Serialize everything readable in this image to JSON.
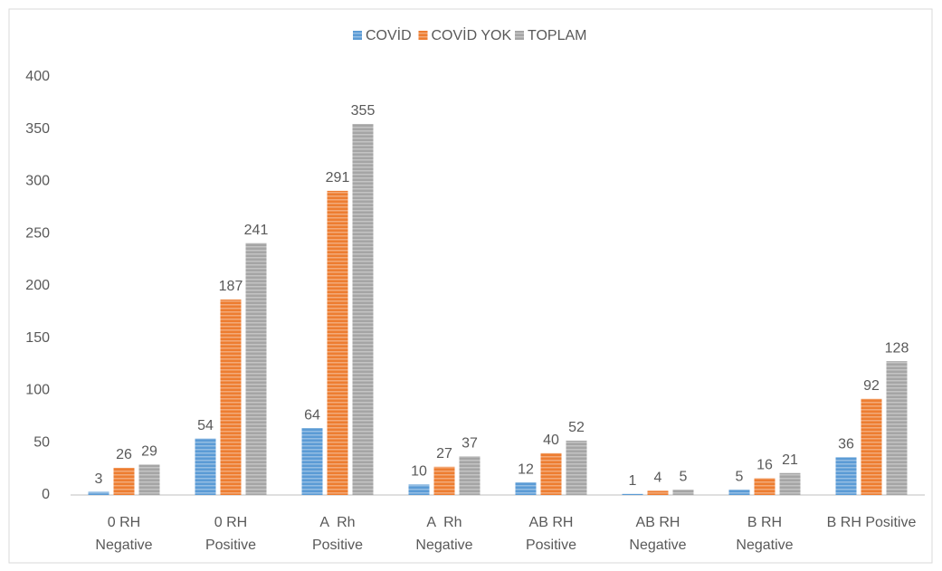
{
  "chart_data": {
    "type": "bar",
    "categories": [
      [
        "0 RH",
        "Negative"
      ],
      [
        "0 RH",
        "Positive"
      ],
      [
        "A  Rh",
        "Positive"
      ],
      [
        "A  Rh",
        "Negative"
      ],
      [
        "AB RH",
        "Positive"
      ],
      [
        "AB RH",
        "Negative"
      ],
      [
        "B RH",
        "Negative"
      ],
      [
        "B RH Positive"
      ]
    ],
    "series": [
      {
        "name": "COVİD",
        "color": "#5b9bd5",
        "values": [
          3,
          54,
          64,
          10,
          12,
          1,
          5,
          36
        ]
      },
      {
        "name": "COVİD YOK",
        "color": "#ed7d31",
        "values": [
          26,
          187,
          291,
          27,
          40,
          4,
          16,
          92
        ]
      },
      {
        "name": "TOPLAM",
        "color": "#a5a5a5",
        "values": [
          29,
          241,
          355,
          37,
          52,
          5,
          21,
          128
        ]
      }
    ],
    "ylim": [
      0,
      400
    ],
    "yticks": [
      0,
      50,
      100,
      150,
      200,
      250,
      300,
      350,
      400
    ],
    "legend": "top",
    "grid": false
  }
}
